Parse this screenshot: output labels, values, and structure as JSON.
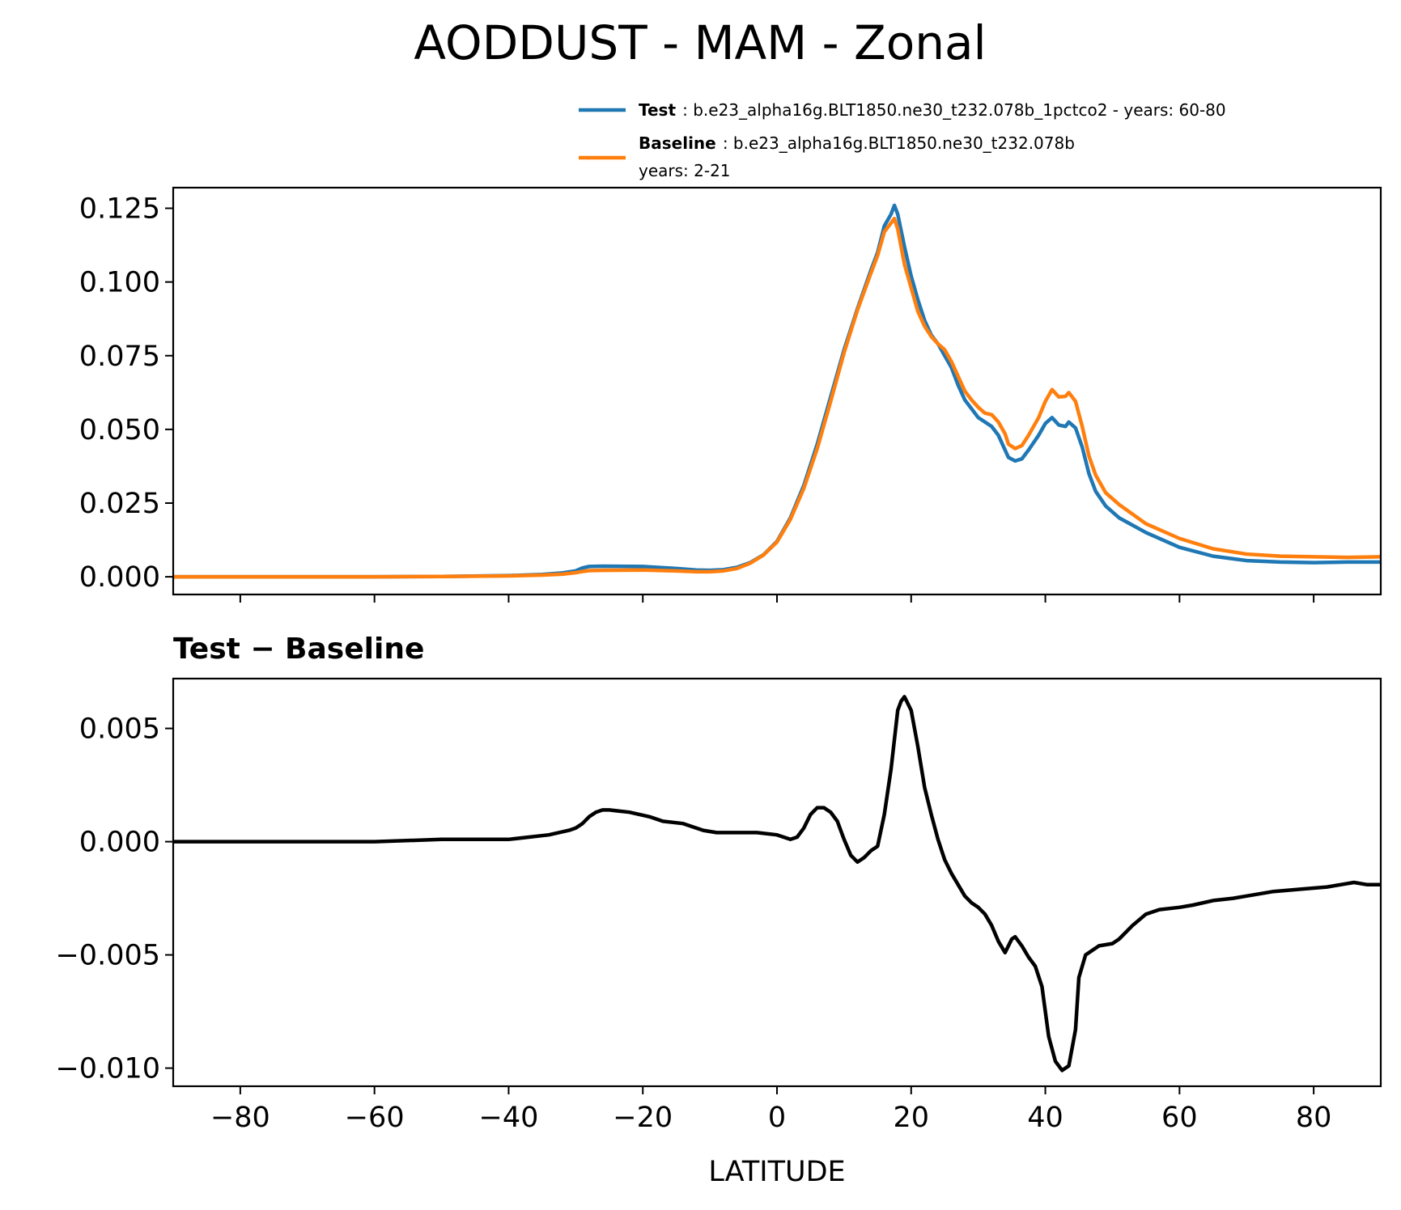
{
  "chart_data": {
    "type": "line",
    "title": "AODDUST - MAM - Zonal",
    "xlabel": "LATITUDE",
    "xlim": [
      -90,
      90
    ],
    "x_ticks": [
      -80,
      -60,
      -40,
      -20,
      0,
      20,
      40,
      60,
      80
    ],
    "x_tick_labels": [
      "−80",
      "−60",
      "−40",
      "−20",
      "0",
      "20",
      "40",
      "60",
      "80"
    ],
    "legend": {
      "test": {
        "label_bold": "Test",
        "label_text": ": b.e23_alpha16g.BLT1850.ne30_t232.078b_1pctco2 - years: 60-80",
        "color": "#1f77b4"
      },
      "baseline": {
        "label_bold": "Baseline",
        "label_text": ": b.e23_alpha16g.BLT1850.ne30_t232.078b",
        "label_text_2": "years: 2-21",
        "color": "#ff7f0e"
      }
    },
    "top_panel": {
      "ylim": [
        -0.006,
        0.132
      ],
      "y_ticks": [
        0.0,
        0.025,
        0.05,
        0.075,
        0.1,
        0.125
      ],
      "y_tick_labels": [
        "0.000",
        "0.025",
        "0.050",
        "0.075",
        "0.100",
        "0.125"
      ],
      "series": [
        {
          "name": "Test",
          "color": "#1f77b4",
          "points": [
            [
              -90,
              0
            ],
            [
              -60,
              0
            ],
            [
              -50,
              0.0001
            ],
            [
              -40,
              0.0004
            ],
            [
              -35,
              0.0008
            ],
            [
              -32,
              0.0013
            ],
            [
              -30,
              0.002
            ],
            [
              -29,
              0.003
            ],
            [
              -28,
              0.0035
            ],
            [
              -26,
              0.0036
            ],
            [
              -20,
              0.0035
            ],
            [
              -15,
              0.0028
            ],
            [
              -12,
              0.0023
            ],
            [
              -10,
              0.0022
            ],
            [
              -8,
              0.0024
            ],
            [
              -6,
              0.0032
            ],
            [
              -4,
              0.0048
            ],
            [
              -2,
              0.0075
            ],
            [
              0,
              0.012
            ],
            [
              2,
              0.02
            ],
            [
              4,
              0.031
            ],
            [
              6,
              0.045
            ],
            [
              8,
              0.061
            ],
            [
              10,
              0.077
            ],
            [
              12,
              0.091
            ],
            [
              14,
              0.104
            ],
            [
              15,
              0.11
            ],
            [
              16,
              0.119
            ],
            [
              17,
              0.123
            ],
            [
              17.5,
              0.126
            ],
            [
              18,
              0.123
            ],
            [
              19,
              0.112
            ],
            [
              20,
              0.102
            ],
            [
              21,
              0.094
            ],
            [
              22,
              0.087
            ],
            [
              23,
              0.082
            ],
            [
              24,
              0.079
            ],
            [
              25,
              0.075
            ],
            [
              26,
              0.071
            ],
            [
              27,
              0.065
            ],
            [
              28,
              0.06
            ],
            [
              29,
              0.057
            ],
            [
              30,
              0.054
            ],
            [
              31,
              0.0525
            ],
            [
              32,
              0.051
            ],
            [
              33,
              0.048
            ],
            [
              34,
              0.043
            ],
            [
              34.5,
              0.0405
            ],
            [
              35.5,
              0.0393
            ],
            [
              36.5,
              0.04
            ],
            [
              37.5,
              0.043
            ],
            [
              39,
              0.048
            ],
            [
              40,
              0.052
            ],
            [
              41,
              0.054
            ],
            [
              42,
              0.0515
            ],
            [
              43,
              0.051
            ],
            [
              43.5,
              0.0525
            ],
            [
              44.5,
              0.0505
            ],
            [
              45.5,
              0.044
            ],
            [
              46.5,
              0.035
            ],
            [
              47.5,
              0.029
            ],
            [
              49,
              0.024
            ],
            [
              51,
              0.02
            ],
            [
              55,
              0.015
            ],
            [
              60,
              0.01
            ],
            [
              65,
              0.007
            ],
            [
              70,
              0.0055
            ],
            [
              75,
              0.005
            ],
            [
              80,
              0.0048
            ],
            [
              85,
              0.005
            ],
            [
              90,
              0.005
            ]
          ]
        },
        {
          "name": "Baseline",
          "color": "#ff7f0e",
          "points": [
            [
              -90,
              0
            ],
            [
              -60,
              0
            ],
            [
              -50,
              0.0001
            ],
            [
              -40,
              0.0003
            ],
            [
              -35,
              0.0006
            ],
            [
              -32,
              0.0009
            ],
            [
              -30,
              0.0014
            ],
            [
              -29,
              0.0018
            ],
            [
              -28,
              0.0021
            ],
            [
              -26,
              0.0022
            ],
            [
              -20,
              0.0023
            ],
            [
              -15,
              0.002
            ],
            [
              -12,
              0.0017
            ],
            [
              -10,
              0.0017
            ],
            [
              -8,
              0.002
            ],
            [
              -6,
              0.0028
            ],
            [
              -4,
              0.0046
            ],
            [
              -2,
              0.0074
            ],
            [
              0,
              0.0118
            ],
            [
              2,
              0.0195
            ],
            [
              4,
              0.03
            ],
            [
              6,
              0.0435
            ],
            [
              8,
              0.0595
            ],
            [
              10,
              0.076
            ],
            [
              12,
              0.0905
            ],
            [
              14,
              0.103
            ],
            [
              15,
              0.109
            ],
            [
              16,
              0.117
            ],
            [
              17,
              0.12
            ],
            [
              17.5,
              0.1215
            ],
            [
              18,
              0.118
            ],
            [
              19,
              0.106
            ],
            [
              20,
              0.098
            ],
            [
              21,
              0.09
            ],
            [
              22,
              0.085
            ],
            [
              23,
              0.0815
            ],
            [
              24,
              0.079
            ],
            [
              25,
              0.077
            ],
            [
              26,
              0.073
            ],
            [
              27,
              0.068
            ],
            [
              28,
              0.063
            ],
            [
              29,
              0.06
            ],
            [
              30,
              0.0575
            ],
            [
              31,
              0.0555
            ],
            [
              32,
              0.055
            ],
            [
              33,
              0.0525
            ],
            [
              34,
              0.0485
            ],
            [
              34.5,
              0.045
            ],
            [
              35.5,
              0.0435
            ],
            [
              36.5,
              0.0445
            ],
            [
              37.5,
              0.048
            ],
            [
              39,
              0.054
            ],
            [
              40,
              0.0595
            ],
            [
              41,
              0.0635
            ],
            [
              42,
              0.061
            ],
            [
              43,
              0.0612
            ],
            [
              43.5,
              0.0625
            ],
            [
              44.5,
              0.0595
            ],
            [
              45.5,
              0.051
            ],
            [
              46.5,
              0.041
            ],
            [
              47.5,
              0.0345
            ],
            [
              49,
              0.0285
            ],
            [
              51,
              0.0245
            ],
            [
              55,
              0.018
            ],
            [
              60,
              0.013
            ],
            [
              65,
              0.0095
            ],
            [
              70,
              0.0077
            ],
            [
              75,
              0.007
            ],
            [
              80,
              0.0068
            ],
            [
              85,
              0.0066
            ],
            [
              90,
              0.0068
            ]
          ]
        }
      ]
    },
    "bottom_panel": {
      "title": "Test − Baseline",
      "ylim": [
        -0.0108,
        0.0072
      ],
      "y_ticks": [
        -0.01,
        -0.005,
        0.0,
        0.005
      ],
      "y_tick_labels": [
        "−0.010",
        "−0.005",
        "0.000",
        "0.005"
      ],
      "series": [
        {
          "name": "Test − Baseline",
          "color": "#000000",
          "points": [
            [
              -90,
              0
            ],
            [
              -60,
              0
            ],
            [
              -50,
              0.0001
            ],
            [
              -40,
              0.0001
            ],
            [
              -37,
              0.0002
            ],
            [
              -34,
              0.0003
            ],
            [
              -31,
              0.0005
            ],
            [
              -30,
              0.0006
            ],
            [
              -29,
              0.0008
            ],
            [
              -28,
              0.0011
            ],
            [
              -27,
              0.0013
            ],
            [
              -26,
              0.0014
            ],
            [
              -25,
              0.0014
            ],
            [
              -22,
              0.0013
            ],
            [
              -19,
              0.0011
            ],
            [
              -17,
              0.0009
            ],
            [
              -14,
              0.0008
            ],
            [
              -11,
              0.0005
            ],
            [
              -9,
              0.0004
            ],
            [
              -5,
              0.0004
            ],
            [
              -3,
              0.0004
            ],
            [
              0,
              0.0003
            ],
            [
              1,
              0.0002
            ],
            [
              2,
              0.0001
            ],
            [
              3,
              0.0002
            ],
            [
              4,
              0.0006
            ],
            [
              5,
              0.0012
            ],
            [
              6,
              0.0015
            ],
            [
              7,
              0.0015
            ],
            [
              8,
              0.0013
            ],
            [
              9,
              0.0009
            ],
            [
              10,
              0.0001
            ],
            [
              11,
              -0.0006
            ],
            [
              12,
              -0.0009
            ],
            [
              13,
              -0.0007
            ],
            [
              14,
              -0.0004
            ],
            [
              15,
              -0.0002
            ],
            [
              16,
              0.0012
            ],
            [
              17,
              0.0032
            ],
            [
              18,
              0.0058
            ],
            [
              18.5,
              0.0062
            ],
            [
              19,
              0.0064
            ],
            [
              20,
              0.0058
            ],
            [
              21,
              0.0042
            ],
            [
              22,
              0.0024
            ],
            [
              23,
              0.0012
            ],
            [
              24,
              0.0001
            ],
            [
              25,
              -0.0008
            ],
            [
              26,
              -0.0014
            ],
            [
              27,
              -0.0019
            ],
            [
              28,
              -0.0024
            ],
            [
              29,
              -0.0027
            ],
            [
              30,
              -0.0029
            ],
            [
              31,
              -0.0032
            ],
            [
              32,
              -0.0037
            ],
            [
              33,
              -0.0044
            ],
            [
              34,
              -0.0049
            ],
            [
              35,
              -0.0043
            ],
            [
              35.5,
              -0.0042
            ],
            [
              36.5,
              -0.0046
            ],
            [
              37.5,
              -0.0051
            ],
            [
              38.5,
              -0.0055
            ],
            [
              39.5,
              -0.0064
            ],
            [
              40.5,
              -0.0086
            ],
            [
              41.5,
              -0.0097
            ],
            [
              42.5,
              -0.0101
            ],
            [
              43.5,
              -0.0099
            ],
            [
              44.5,
              -0.0083
            ],
            [
              45,
              -0.006
            ],
            [
              46,
              -0.005
            ],
            [
              47,
              -0.0048
            ],
            [
              48,
              -0.0046
            ],
            [
              50,
              -0.0045
            ],
            [
              51,
              -0.0043
            ],
            [
              53,
              -0.0037
            ],
            [
              55,
              -0.0032
            ],
            [
              57,
              -0.003
            ],
            [
              60,
              -0.0029
            ],
            [
              62,
              -0.0028
            ],
            [
              65,
              -0.0026
            ],
            [
              68,
              -0.0025
            ],
            [
              70,
              -0.0024
            ],
            [
              74,
              -0.0022
            ],
            [
              78,
              -0.0021
            ],
            [
              82,
              -0.002
            ],
            [
              84,
              -0.0019
            ],
            [
              86,
              -0.0018
            ],
            [
              88,
              -0.0019
            ],
            [
              90,
              -0.0019
            ]
          ]
        }
      ]
    }
  }
}
